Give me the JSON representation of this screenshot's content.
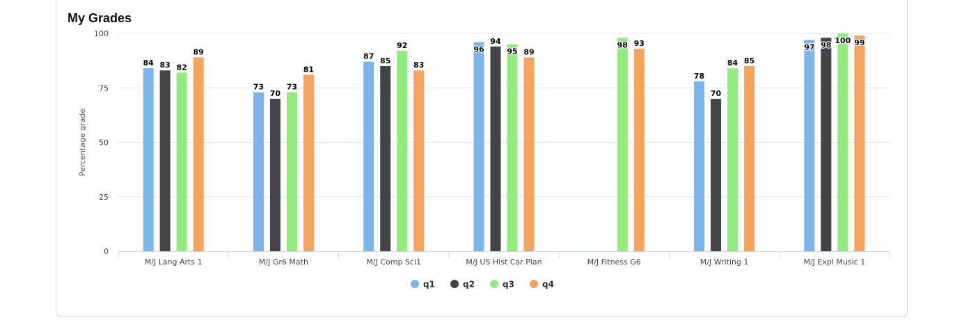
{
  "card": {
    "title": "My Grades"
  },
  "chart_data": {
    "type": "bar",
    "title": "My Grades",
    "ylabel": "Percentage grade",
    "xlabel": "",
    "ylim": [
      0,
      100
    ],
    "yticks": [
      0,
      25,
      50,
      75,
      100
    ],
    "grid": true,
    "legend": "bottom-center",
    "categories": [
      "M/J Lang Arts 1",
      "M/J Gr6 Math",
      "M/J Comp Sci1",
      "M/J US Hist Car Plan",
      "M/J Fitness G6",
      "M/J Writing 1",
      "M/J Expl Music 1"
    ],
    "series": [
      {
        "name": "q1",
        "color": "#7cb5ec",
        "values": [
          84,
          73,
          87,
          96,
          null,
          78,
          97
        ]
      },
      {
        "name": "q2",
        "color": "#434348",
        "values": [
          83,
          70,
          85,
          94,
          null,
          70,
          98
        ]
      },
      {
        "name": "q3",
        "color": "#90ed7d",
        "values": [
          82,
          73,
          92,
          95,
          98,
          84,
          100
        ]
      },
      {
        "name": "q4",
        "color": "#f7a35c",
        "values": [
          89,
          81,
          83,
          89,
          93,
          85,
          99
        ]
      }
    ]
  }
}
